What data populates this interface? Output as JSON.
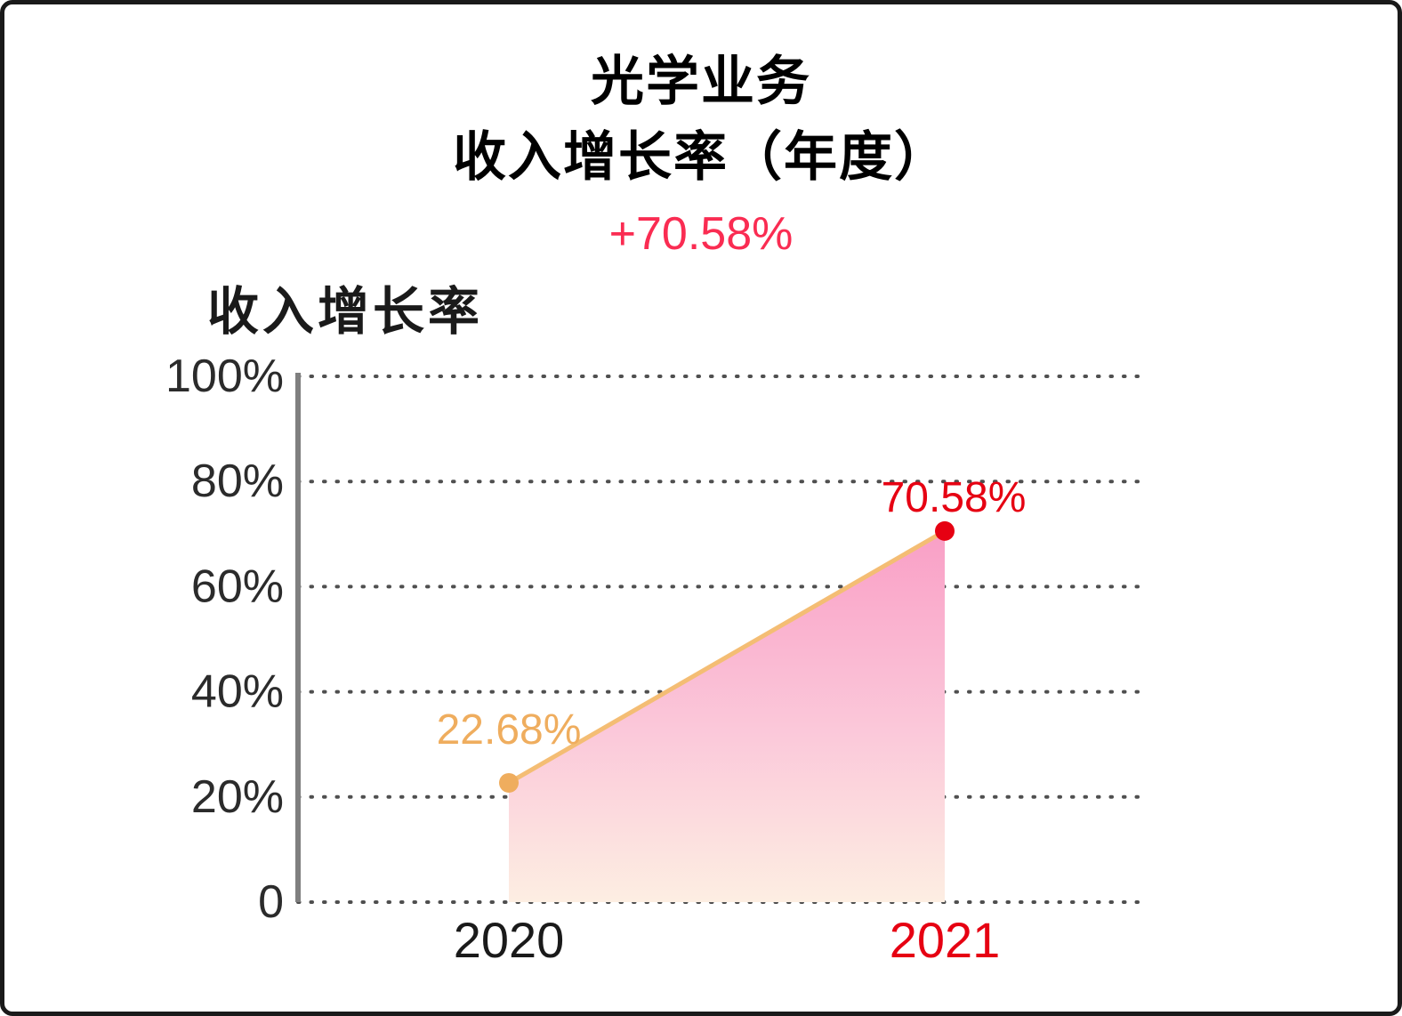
{
  "header": {
    "title_line1": "光学业务",
    "title_line2": "收入增长率（年度）",
    "change": "+70.58%"
  },
  "colors": {
    "subtitle_red": "#fa2c52",
    "pure_red": "#e60012",
    "orange": "#efad5e",
    "line_orange": "#f4bd74",
    "area_top_pink": "#f99fc6",
    "area_mid_pink": "#fbc9da",
    "area_bottom_peach": "#fdeee2",
    "grid_gray": "#4f4f4f",
    "axis_gray": "#7f7f7f",
    "black_text": "#1a1a1a"
  },
  "chart_data": {
    "type": "area",
    "title": "收入增长率",
    "categories": [
      "2020",
      "2021"
    ],
    "values": [
      22.68,
      70.58
    ],
    "value_labels": [
      "22.68%",
      "70.58%"
    ],
    "ylim": [
      0,
      100
    ],
    "yticks": [
      {
        "value": 0,
        "label": "0"
      },
      {
        "value": 20,
        "label": "20%"
      },
      {
        "value": 40,
        "label": "40%"
      },
      {
        "value": 60,
        "label": "60%"
      },
      {
        "value": 80,
        "label": "80%"
      },
      {
        "value": 100,
        "label": "100%"
      }
    ],
    "grid": "horizontal-dotted",
    "legend": false,
    "annotation": "+70.58%"
  }
}
